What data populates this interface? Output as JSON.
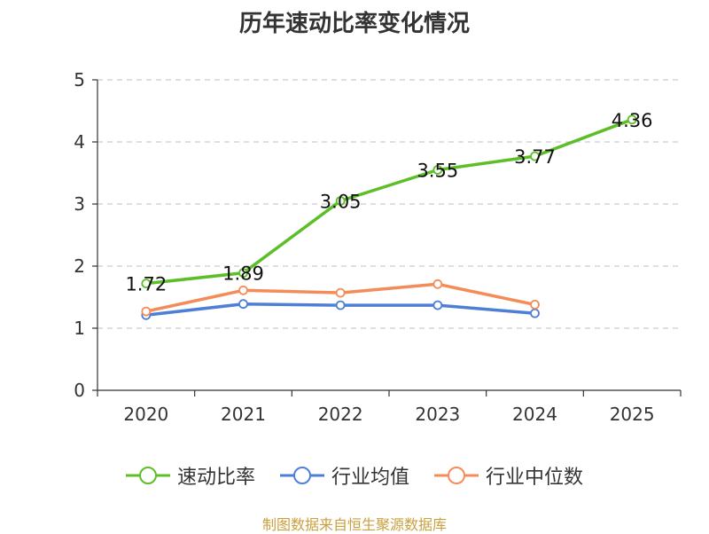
{
  "chart_data": {
    "type": "line",
    "title": "历年速动比率变化情况",
    "categories": [
      "2020",
      "2021",
      "2022",
      "2023",
      "2024",
      "2025"
    ],
    "ylim": [
      0,
      5
    ],
    "yticks": [
      0,
      1,
      2,
      3,
      4,
      5
    ],
    "grid": true,
    "legend_position": "bottom",
    "series": [
      {
        "name": "速动比率",
        "color": "#5cbf28",
        "values": [
          1.72,
          1.89,
          3.05,
          3.55,
          3.77,
          4.36
        ],
        "labels": [
          "1.72",
          "1.89",
          "3.05",
          "3.55",
          "3.77",
          "4.36"
        ]
      },
      {
        "name": "行业均值",
        "color": "#4e7fd6",
        "values": [
          1.21,
          1.39,
          1.37,
          1.37,
          1.24,
          null
        ]
      },
      {
        "name": "行业中位数",
        "color": "#f48c5a",
        "values": [
          1.27,
          1.61,
          1.57,
          1.71,
          1.38,
          null
        ]
      }
    ],
    "source": "制图数据来自恒生聚源数据库"
  }
}
